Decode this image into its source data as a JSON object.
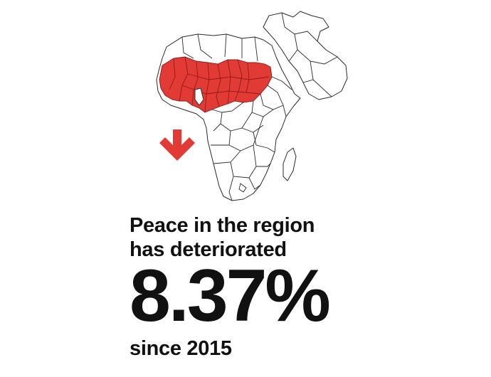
{
  "infographic": {
    "headline_line1": "Peace in the region",
    "headline_line2": "has deteriorated",
    "stat_value": "8.37%",
    "since_label": "since 2015"
  },
  "map": {
    "region": "Africa",
    "highlighted_area": "West Africa and the Sahel",
    "highlight_color": "#e23b36",
    "outline_color": "#2a2a2a"
  },
  "trend_icon": {
    "icon": "arrow-down-icon",
    "color": "#e23b36"
  }
}
